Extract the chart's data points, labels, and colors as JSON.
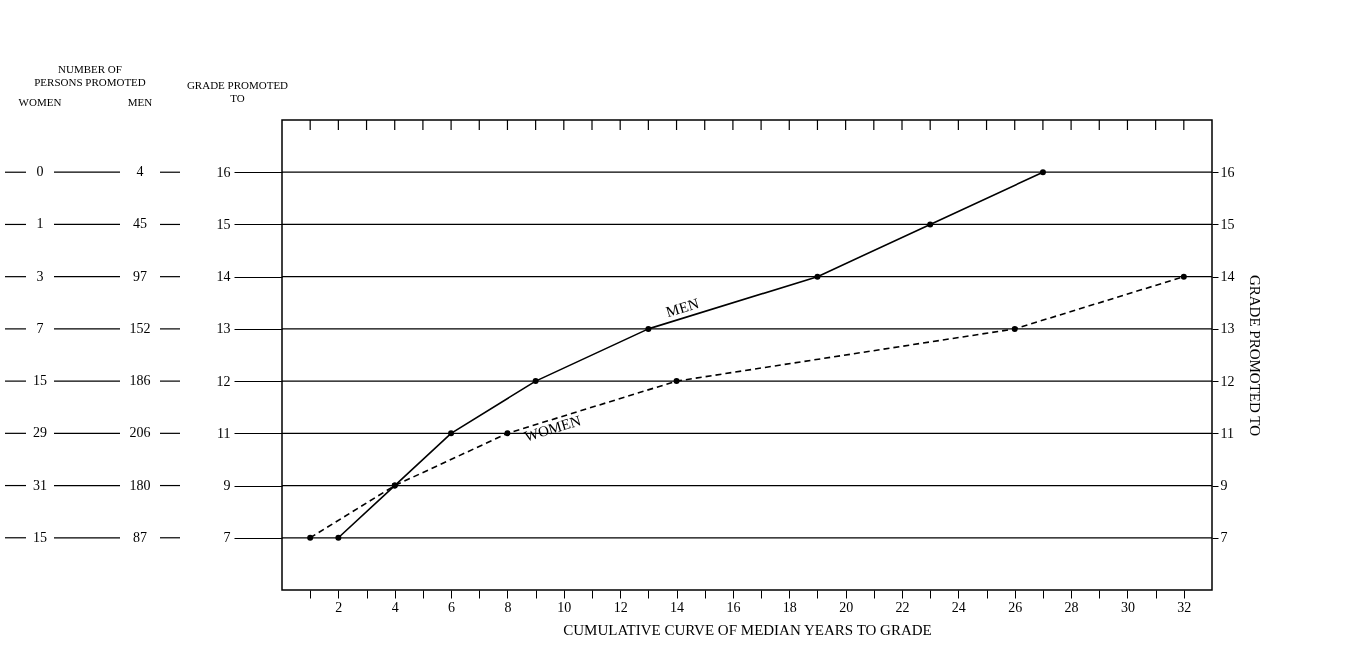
{
  "chart_data": {
    "type": "line",
    "orientation": "horizontal",
    "xlabel": "CUMULATIVE CURVE OF MEDIAN YEARS TO GRADE",
    "ylabel": "GRADE PROMOTED TO",
    "y2label": "GRADE PROMOTED TO",
    "categories": [
      "16",
      "15",
      "14",
      "13",
      "12",
      "11",
      "9",
      "7"
    ],
    "xlim": [
      0,
      33
    ],
    "xticks": [
      {
        "value": 1,
        "label": null
      },
      2,
      {
        "value": 3,
        "label": null
      },
      4,
      {
        "value": 5,
        "label": null
      },
      6,
      {
        "value": 7,
        "label": null
      },
      8,
      {
        "value": 9,
        "label": null
      },
      10,
      {
        "value": 11,
        "label": null
      },
      12,
      {
        "value": 13,
        "label": null
      },
      14,
      {
        "value": 15,
        "label": null
      },
      16,
      {
        "value": 17,
        "label": null
      },
      18,
      {
        "value": 19,
        "label": null
      },
      20,
      {
        "value": 21,
        "label": null
      },
      22,
      {
        "value": 23,
        "label": null
      },
      24,
      {
        "value": 25,
        "label": null
      },
      26,
      {
        "value": 27,
        "label": null
      },
      28,
      {
        "value": 29,
        "label": null
      },
      30,
      {
        "value": 31,
        "label": null
      },
      32
    ],
    "grid": "y",
    "marker": "circle",
    "series": [
      {
        "name": "MEN",
        "color": "#000000",
        "line_style": "solid",
        "values": [
          27,
          23,
          19,
          13,
          9,
          6,
          4,
          2
        ]
      },
      {
        "name": "WOMEN",
        "color": "#000000",
        "line_style": "dashed",
        "values": [
          null,
          null,
          32,
          26,
          14,
          8,
          4,
          1
        ]
      }
    ],
    "annotations": [
      "NUMBER OF PERSONS PROMOTED",
      "WOMEN",
      "MEN",
      "0",
      "1",
      "3",
      "7",
      "15",
      "29",
      "31",
      "15",
      "4",
      "45",
      "97",
      "152",
      "186",
      "206",
      "180",
      "87"
    ]
  }
}
